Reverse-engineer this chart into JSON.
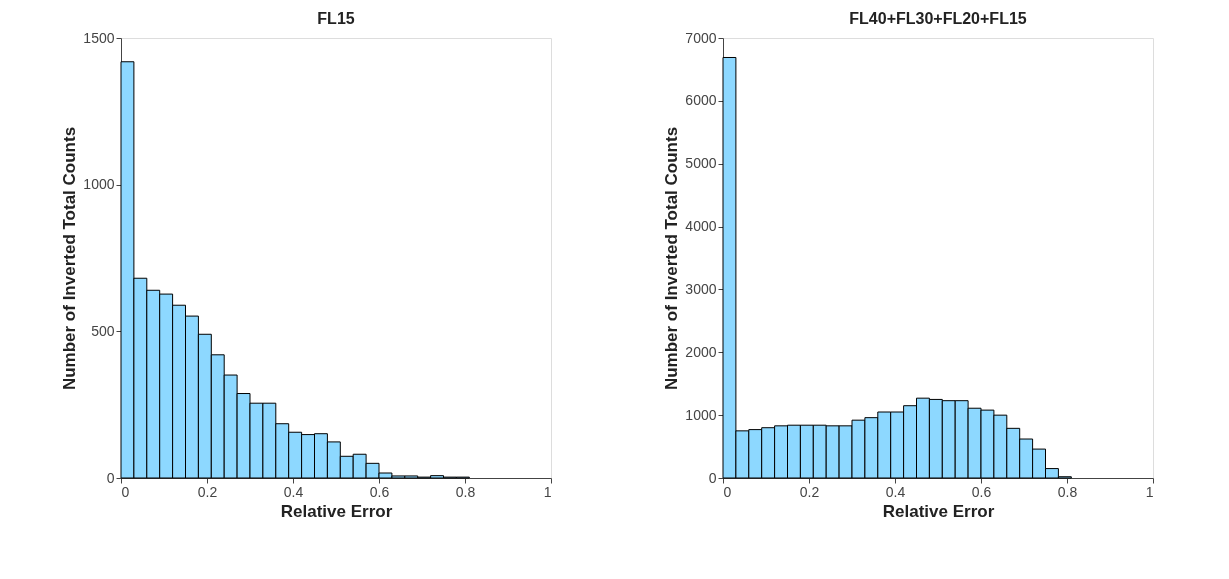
{
  "chart_data": [
    {
      "type": "histogram",
      "title": "FL15",
      "xlabel": "Relative Error",
      "ylabel": "Number of Inverted Total Counts",
      "bins": [
        0,
        0.03,
        0.06,
        0.09,
        0.12,
        0.15,
        0.18,
        0.21,
        0.24,
        0.27,
        0.3,
        0.33,
        0.36,
        0.39,
        0.42,
        0.45,
        0.48,
        0.51,
        0.54,
        0.57,
        0.6,
        0.63,
        0.66,
        0.69,
        0.72,
        0.75,
        0.78,
        0.81
      ],
      "values": [
        1419,
        681,
        640,
        627,
        589,
        552,
        490,
        420,
        351,
        288,
        255,
        255,
        185,
        156,
        148,
        151,
        123,
        74,
        81,
        50,
        17,
        7,
        7,
        3,
        8,
        3,
        3
      ],
      "color": "#8dd8ff",
      "xlim": [
        0,
        1
      ],
      "xticks": [
        0,
        0.2,
        0.4,
        0.6,
        0.8,
        1
      ],
      "ylim": [
        0,
        1500
      ],
      "yticks": [
        0,
        500,
        1000,
        1500
      ],
      "grid": false
    },
    {
      "type": "histogram",
      "title": "FL40+FL30+FL20+FL15",
      "xlabel": "Relative Error",
      "ylabel": "Number of Inverted Total Counts",
      "bins": [
        0,
        0.03,
        0.06,
        0.09,
        0.12,
        0.15,
        0.18,
        0.21,
        0.24,
        0.27,
        0.3,
        0.33,
        0.36,
        0.39,
        0.42,
        0.45,
        0.48,
        0.51,
        0.54,
        0.57,
        0.6,
        0.63,
        0.66,
        0.69,
        0.72,
        0.75,
        0.78,
        0.81
      ],
      "values": [
        6690,
        750,
        770,
        800,
        830,
        840,
        840,
        840,
        830,
        830,
        920,
        960,
        1050,
        1050,
        1150,
        1270,
        1250,
        1230,
        1230,
        1110,
        1080,
        1000,
        790,
        620,
        460,
        150,
        20
      ],
      "color": "#8dd8ff",
      "xlim": [
        0,
        1
      ],
      "xticks": [
        0,
        0.2,
        0.4,
        0.6,
        0.8,
        1
      ],
      "ylim": [
        0,
        7000
      ],
      "yticks": [
        0,
        1000,
        2000,
        3000,
        4000,
        5000,
        6000,
        7000
      ],
      "grid": false
    }
  ]
}
